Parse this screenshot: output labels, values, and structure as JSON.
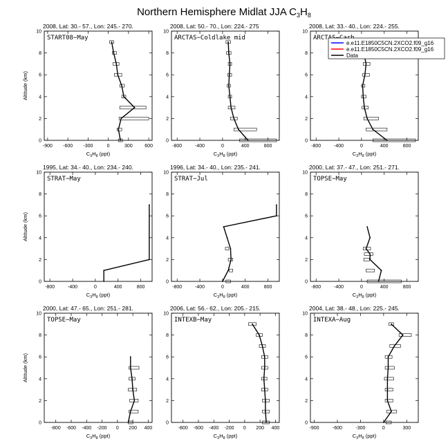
{
  "figure": {
    "title_main": "Northern Hemisphere Midlat JJA C",
    "title_sub1": "3",
    "title_mid": "H",
    "title_sub2": "8"
  },
  "axis_text": {
    "x_label": "C3H8 (ppt)",
    "y_label": "Altitude (km)"
  },
  "legend": {
    "placement": "top-right of panel 3",
    "entries": [
      {
        "label": "e.e11.E1850C5CN.2XCO2.f09_g16",
        "color": "#0000ff"
      },
      {
        "label": "e.e11.E1850C5CN.2XCO2.f09_g16",
        "color": "#ff0000"
      },
      {
        "label": "Data",
        "color": "#000000"
      }
    ]
  },
  "chart_data": [
    {
      "type": "line",
      "title": "2008, Lat:  30.- 57., Lon: 245.- 270.",
      "campaign": "START08−May",
      "xlabel": "C3H8 (ppt)",
      "ylabel": "Altitude (km)",
      "xlim": [
        -950,
        650
      ],
      "ylim": [
        0,
        10
      ],
      "xticks": [
        -900,
        -600,
        -300,
        0,
        300,
        600
      ],
      "yticks": [
        0,
        2,
        4,
        6,
        8,
        10
      ],
      "x": [
        180,
        150,
        190,
        390,
        230,
        200,
        140,
        120,
        80,
        50
      ],
      "y": [
        0,
        1,
        2,
        3,
        4,
        5,
        6,
        7,
        8,
        9
      ],
      "whisker": [
        [
          150,
          210
        ],
        [
          130,
          200
        ],
        [
          160,
          600
        ],
        [
          170,
          560
        ],
        [
          200,
          260
        ],
        [
          170,
          240
        ],
        [
          90,
          200
        ],
        [
          70,
          160
        ],
        [
          60,
          120
        ],
        [
          20,
          80
        ]
      ]
    },
    {
      "type": "line",
      "title": "2008, Lat:  50.- 70., Lon: 224.- 275",
      "campaign": "ARCTAS−Coldlake mid",
      "xlabel": "C3H8 (ppt)",
      "ylabel": "Altitude (km)",
      "xlim": [
        -900,
        1000
      ],
      "ylim": [
        0,
        10
      ],
      "xticks": [
        -800,
        -400,
        0,
        400,
        800
      ],
      "yticks": [
        0,
        2,
        4,
        6,
        8,
        10
      ],
      "x": [
        450,
        280,
        200,
        150,
        130,
        110,
        120,
        130,
        110,
        100
      ],
      "y": [
        0,
        1,
        2,
        3,
        4,
        5,
        6,
        7,
        8,
        9
      ],
      "whisker": [
        [
          300,
          950
        ],
        [
          200,
          600
        ],
        [
          140,
          260
        ],
        [
          100,
          220
        ],
        [
          100,
          160
        ],
        [
          80,
          140
        ],
        [
          90,
          160
        ],
        [
          100,
          160
        ],
        [
          70,
          150
        ],
        [
          60,
          140
        ]
      ]
    },
    {
      "type": "line",
      "title": "2008, Lat:  33.- 40., Lon: 224.- 255.",
      "campaign": "ARCTAS−Carb",
      "xlabel": "C3H8 (ppt)",
      "ylabel": "Altitude (km)",
      "xlim": [
        -900,
        1000
      ],
      "ylim": [
        0,
        10
      ],
      "xticks": [
        -800,
        -400,
        0,
        400,
        800
      ],
      "yticks": [
        0,
        2,
        4,
        6,
        8,
        10
      ],
      "x": [
        450,
        200,
        100,
        50,
        30,
        20,
        60,
        80,
        40,
        30
      ],
      "y": [
        0,
        1,
        2,
        3,
        4,
        5,
        6,
        7,
        8,
        9
      ],
      "whisker": [
        [
          200,
          950
        ],
        [
          80,
          450
        ],
        [
          40,
          300
        ],
        [
          10,
          120
        ],
        [
          0,
          80
        ],
        [
          0,
          60
        ],
        [
          20,
          140
        ],
        [
          30,
          150
        ],
        [
          0,
          100
        ],
        [
          0,
          80
        ]
      ]
    },
    {
      "type": "line",
      "title": "1995, Lat:  34.- 40., Lon: 234.- 240.",
      "campaign": "STRAT−May",
      "xlabel": "C3H8 (ppt)",
      "ylabel": "Altitude (km)",
      "xlim": [
        -900,
        1000
      ],
      "ylim": [
        0,
        10
      ],
      "xticks": [
        -800,
        -400,
        0,
        400,
        800
      ],
      "yticks": [
        0,
        2,
        4,
        6,
        8,
        10
      ],
      "x": [
        150,
        150,
        950,
        950
      ],
      "y": [
        0,
        1,
        2,
        7
      ],
      "whisker": []
    },
    {
      "type": "line",
      "title": "1996, Lat:  34.- 40., Lon: 235.- 241.",
      "campaign": "STRAT−Jul",
      "xlabel": "C3H8 (ppt)",
      "ylabel": "Altitude (km)",
      "xlim": [
        -900,
        1000
      ],
      "ylim": [
        0,
        10
      ],
      "xticks": [
        -800,
        -400,
        0,
        400,
        800
      ],
      "yticks": [
        0,
        2,
        4,
        6,
        8,
        10
      ],
      "x": [
        0,
        100,
        150,
        140,
        80,
        20,
        950,
        950
      ],
      "y": [
        0,
        1,
        2,
        3,
        4,
        5,
        6,
        7
      ],
      "whisker": [
        [
          60,
          140
        ],
        [
          120,
          180
        ],
        [
          100,
          180
        ],
        [
          50,
          110
        ]
      ]
    },
    {
      "type": "line",
      "title": "2000, Lat:  37.- 47., Lon: 251.- 271.",
      "campaign": "TOPSE−May",
      "xlabel": "C3H8 (ppt)",
      "ylabel": "Altitude (km)",
      "xlim": [
        -900,
        1000
      ],
      "ylim": [
        0,
        10
      ],
      "xticks": [
        -800,
        -400,
        0,
        400,
        800
      ],
      "yticks": [
        0,
        2,
        4,
        6,
        8,
        10
      ],
      "x": [
        300,
        350,
        150,
        150,
        80,
        150,
        100
      ],
      "y": [
        0,
        1,
        2,
        2.5,
        3,
        4,
        5
      ],
      "whisker": [
        [
          100,
          700
        ],
        [
          80,
          230
        ],
        [
          40,
          140
        ],
        [
          50,
          200
        ],
        [
          30,
          160
        ]
      ]
    },
    {
      "type": "line",
      "title": "2000, Lat:  47.- 65., Lon: 251.- 281.",
      "campaign": "TOPSE−May",
      "xlabel": "C3H8 (ppt)",
      "ylabel": "Altitude (km)",
      "xlim": [
        -950,
        450
      ],
      "ylim": [
        0,
        10
      ],
      "xticks": [
        -800,
        -600,
        -400,
        -200,
        0,
        200,
        400
      ],
      "yticks": [
        0,
        2,
        4,
        6,
        8,
        10
      ],
      "x": [
        140,
        170,
        220,
        200,
        190,
        170,
        170
      ],
      "y": [
        0,
        1,
        2,
        3,
        4,
        5,
        6
      ],
      "whisker": [
        [
          140,
          200
        ],
        [
          150,
          270
        ],
        [
          160,
          270
        ],
        [
          140,
          250
        ],
        [
          150,
          230
        ],
        [
          150,
          280
        ]
      ]
    },
    {
      "type": "line",
      "title": "2006, Lat:  56.- 62., Lon: 205.- 215.",
      "campaign": "INTEXB−May",
      "xlabel": "C3H8 (ppt)",
      "ylabel": "Altitude (km)",
      "xlim": [
        -950,
        450
      ],
      "ylim": [
        0,
        10
      ],
      "xticks": [
        -800,
        -600,
        -400,
        -200,
        0,
        200,
        400
      ],
      "yticks": [
        0,
        2,
        4,
        6,
        8,
        10
      ],
      "x": [
        280,
        270,
        270,
        260,
        250,
        260,
        260,
        230,
        190,
        100
      ],
      "y": [
        0,
        1,
        2,
        3,
        4,
        5,
        6,
        7,
        8,
        9
      ],
      "whisker": [
        [
          230,
          320
        ],
        [
          230,
          320
        ],
        [
          230,
          320
        ],
        [
          220,
          300
        ],
        [
          220,
          290
        ],
        [
          220,
          300
        ],
        [
          220,
          300
        ],
        [
          190,
          270
        ],
        [
          150,
          230
        ],
        [
          50,
          150
        ]
      ]
    },
    {
      "type": "line",
      "title": "2004, Lat:  38.- 48., Lon: 225.- 245.",
      "campaign": "INTEXA−Aug",
      "xlabel": "C3H8 (ppt)",
      "ylabel": "Altitude (km)",
      "xlim": [
        -950,
        450
      ],
      "ylim": [
        0,
        10
      ],
      "xticks": [
        -900,
        -600,
        -300,
        0,
        300
      ],
      "yticks": [
        0,
        2,
        4,
        6,
        8,
        10
      ],
      "x": [
        0,
        100,
        50,
        50,
        50,
        60,
        60,
        140,
        250,
        100
      ],
      "y": [
        0,
        1,
        2,
        3,
        4,
        5,
        6,
        7,
        8,
        9
      ],
      "whisker": [
        [
          30,
          100
        ],
        [
          40,
          170
        ],
        [
          20,
          120
        ],
        [
          20,
          120
        ],
        [
          10,
          130
        ],
        [
          20,
          140
        ],
        [
          20,
          110
        ],
        [
          80,
          220
        ],
        [
          200,
          360
        ],
        [
          70,
          130
        ]
      ]
    }
  ]
}
